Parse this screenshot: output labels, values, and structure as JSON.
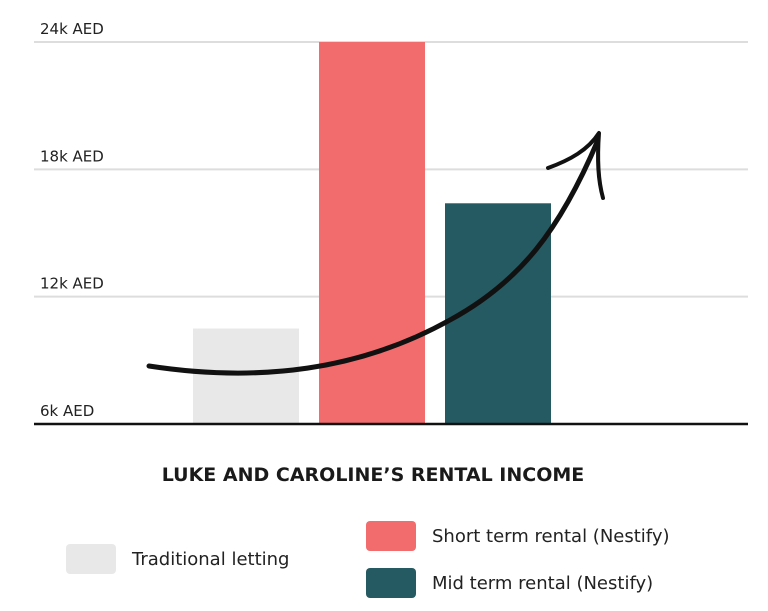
{
  "chart_data": {
    "type": "bar",
    "title": "LUKE AND CAROLINE’S RENTAL INCOME",
    "categories": [
      "Traditional letting",
      "Short term rental (Nestify)",
      "Mid term rental (Nestify)"
    ],
    "values": [
      10500,
      24000,
      16400
    ],
    "colors": [
      "#e8e8e8",
      "#f26b6d",
      "#265a62"
    ],
    "ylim": [
      6000,
      24000
    ],
    "yticks": [
      6000,
      12000,
      18000,
      24000
    ],
    "ytick_labels": [
      "6k AED",
      "12k AED",
      "18k AED",
      "24k AED"
    ],
    "xlabel": "",
    "ylabel": "",
    "grid": true,
    "annotation": "upward-trend-arrow-icon"
  },
  "legend": {
    "items": [
      {
        "label": "Traditional letting",
        "color": "#e8e8e8"
      },
      {
        "label": "Short term rental (Nestify)",
        "color": "#f26b6d"
      },
      {
        "label": "Mid term rental (Nestify)",
        "color": "#265a62"
      }
    ]
  }
}
